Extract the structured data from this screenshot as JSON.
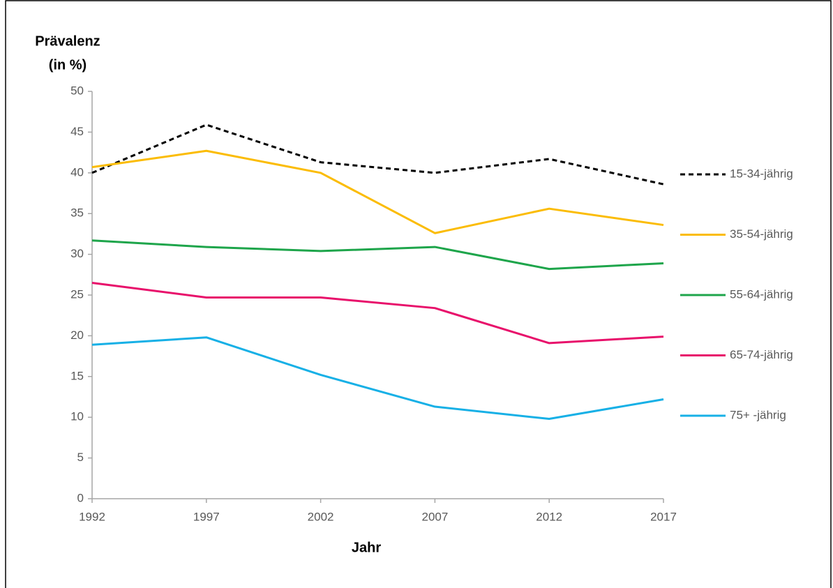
{
  "chart_data": {
    "type": "line",
    "ylabel": [
      "Prävalenz",
      "(in %)"
    ],
    "xlabel": "Jahr",
    "x": [
      1992,
      1997,
      2002,
      2007,
      2012,
      2017
    ],
    "xlim": [
      1992,
      2017
    ],
    "xticks": [
      1992,
      1997,
      2002,
      2007,
      2012,
      2017
    ],
    "ylim": [
      0,
      50
    ],
    "yticks": [
      0,
      5,
      10,
      15,
      20,
      25,
      30,
      35,
      40,
      45,
      50
    ],
    "legend": "right",
    "series": [
      {
        "name": "15-34-jährig",
        "color": "#000000",
        "dashed": true,
        "values": [
          40.0,
          45.9,
          41.3,
          40.0,
          41.7,
          38.6
        ]
      },
      {
        "name": "35-54-jährig",
        "color": "#fbbc05",
        "values": [
          40.7,
          42.7,
          40.0,
          32.6,
          35.6,
          33.6
        ]
      },
      {
        "name": "55-64-jährig",
        "color": "#1ea54b",
        "values": [
          31.7,
          30.9,
          30.4,
          30.9,
          28.2,
          28.9
        ]
      },
      {
        "name": "65-74-jährig",
        "color": "#e8116b",
        "values": [
          26.5,
          24.7,
          24.7,
          23.4,
          19.1,
          19.9
        ]
      },
      {
        "name": "75+ -jährig",
        "color": "#17b0e6",
        "values": [
          18.9,
          19.8,
          15.2,
          11.3,
          9.8,
          12.2
        ]
      }
    ]
  }
}
